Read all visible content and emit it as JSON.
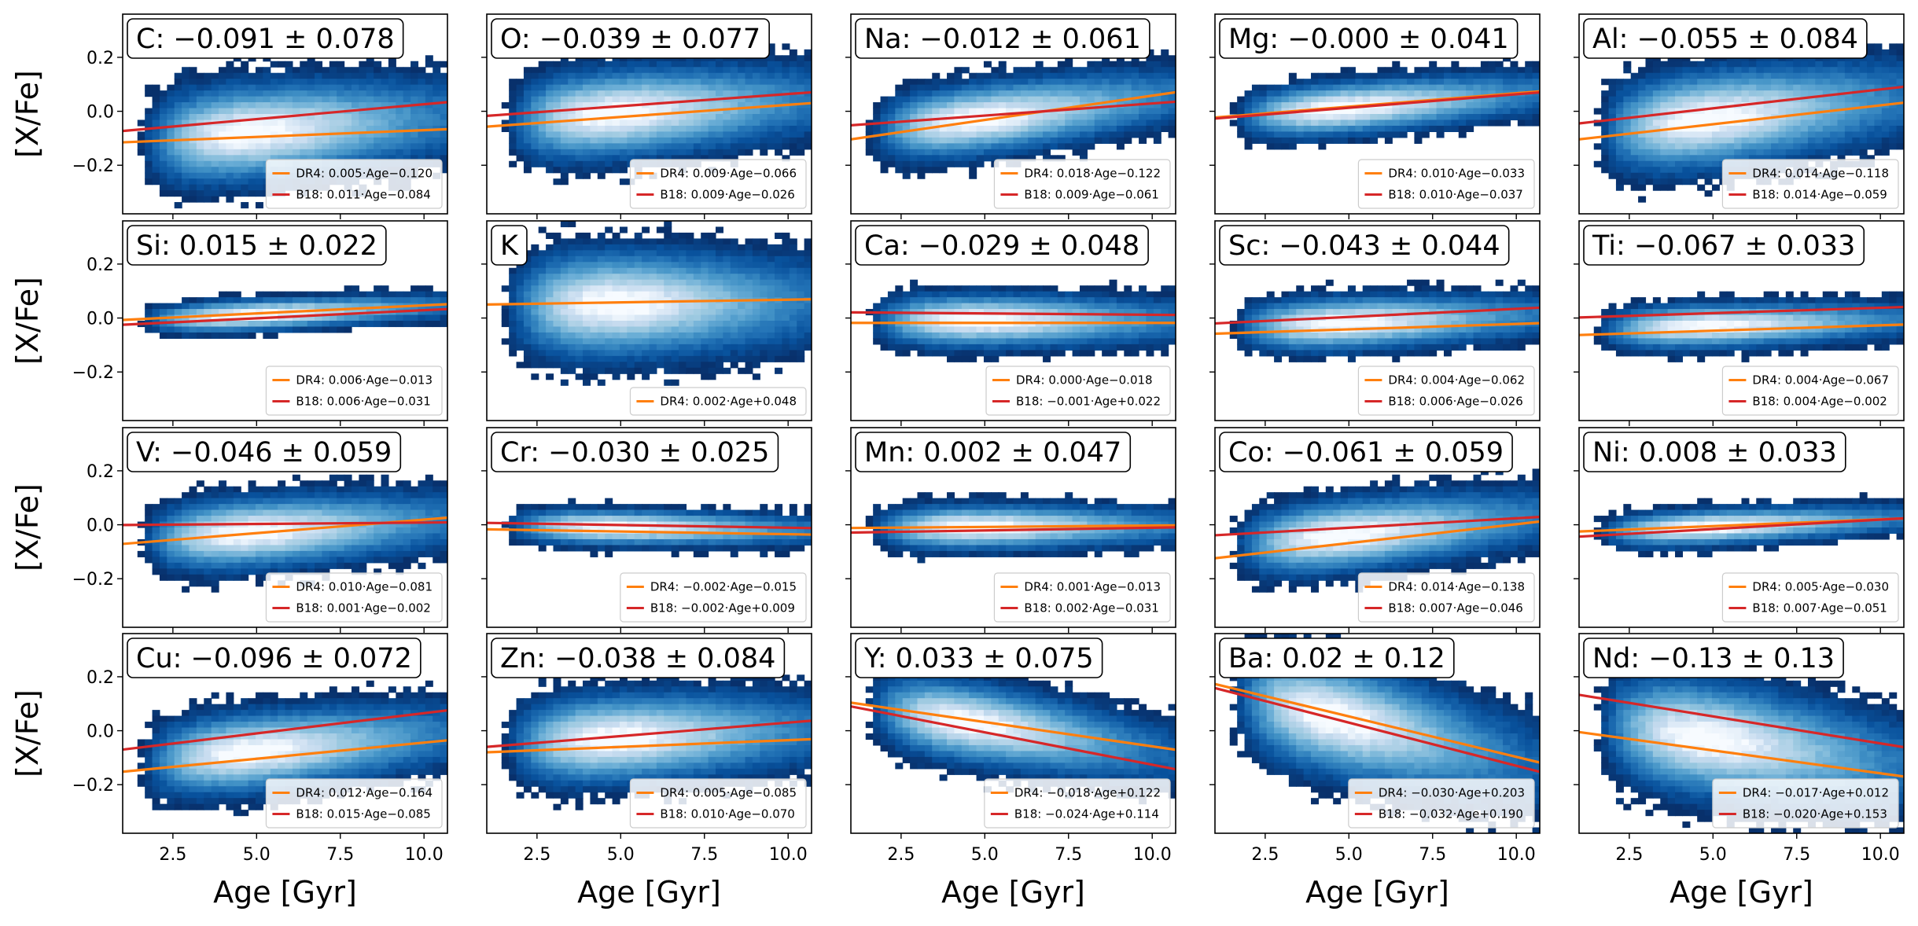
{
  "figure": {
    "xlabel": "Age [Gyr]",
    "ylabel": "[X/Fe]",
    "xlim": [
      1.0,
      10.7
    ],
    "ylim": [
      -0.38,
      0.36
    ],
    "xticks": [
      2.5,
      5.0,
      7.5,
      10.0
    ],
    "xticklabels": [
      "2.5",
      "5.0",
      "7.5",
      "10.0"
    ],
    "yticks": [
      -0.2,
      0.0,
      0.2
    ],
    "yticklabels": [
      "−0.2",
      "0.0",
      "0.2"
    ],
    "colors": {
      "dr4": "#ff7f0e",
      "b18": "#d62728",
      "density_low": "#08306b",
      "density_high": "#f7fbff"
    }
  },
  "chart_data": [
    {
      "type": "heatmap",
      "title": "C: −0.091 ± 0.078",
      "cy": -0.08,
      "sy": 0.11,
      "cx": 4.8,
      "slope": 0.01,
      "series": [
        {
          "name": "DR4: 0.005·Age−0.120",
          "slope": 0.005,
          "intercept": -0.12,
          "color": "#ff7f0e"
        },
        {
          "name": "B18: 0.011·Age−0.084",
          "slope": 0.011,
          "intercept": -0.084,
          "color": "#d62728"
        }
      ]
    },
    {
      "type": "heatmap",
      "title": "O: −0.039 ± 0.077",
      "cy": -0.01,
      "sy": 0.1,
      "cx": 4.8,
      "slope": 0.009,
      "series": [
        {
          "name": "DR4: 0.009·Age−0.066",
          "slope": 0.009,
          "intercept": -0.066,
          "color": "#ff7f0e"
        },
        {
          "name": "B18: 0.009·Age−0.026",
          "slope": 0.009,
          "intercept": -0.026,
          "color": "#d62728"
        }
      ]
    },
    {
      "type": "heatmap",
      "title": "Na: −0.012 ± 0.061",
      "cy": -0.03,
      "sy": 0.08,
      "cx": 4.8,
      "slope": 0.015,
      "series": [
        {
          "name": "DR4: 0.018·Age−0.122",
          "slope": 0.018,
          "intercept": -0.122,
          "color": "#ff7f0e"
        },
        {
          "name": "B18: 0.009·Age−0.061",
          "slope": 0.009,
          "intercept": -0.061,
          "color": "#d62728"
        }
      ]
    },
    {
      "type": "heatmap",
      "title": "Mg: −0.000 ± 0.041",
      "cy": 0.01,
      "sy": 0.06,
      "cx": 4.8,
      "slope": 0.01,
      "series": [
        {
          "name": "DR4: 0.010·Age−0.033",
          "slope": 0.01,
          "intercept": -0.033,
          "color": "#ff7f0e"
        },
        {
          "name": "B18: 0.010·Age−0.037",
          "slope": 0.01,
          "intercept": -0.037,
          "color": "#d62728"
        }
      ]
    },
    {
      "type": "heatmap",
      "title": "Al: −0.055 ± 0.084",
      "cy": -0.03,
      "sy": 0.11,
      "cx": 4.8,
      "slope": 0.014,
      "series": [
        {
          "name": "DR4: 0.014·Age−0.118",
          "slope": 0.014,
          "intercept": -0.118,
          "color": "#ff7f0e"
        },
        {
          "name": "B18: 0.014·Age−0.059",
          "slope": 0.014,
          "intercept": -0.059,
          "color": "#d62728"
        }
      ]
    },
    {
      "type": "heatmap",
      "title": "Si: 0.015 ± 0.022",
      "cy": 0.01,
      "sy": 0.035,
      "cx": 4.8,
      "slope": 0.006,
      "series": [
        {
          "name": "DR4: 0.006·Age−0.013",
          "slope": 0.006,
          "intercept": -0.013,
          "color": "#ff7f0e"
        },
        {
          "name": "B18: 0.006·Age−0.031",
          "slope": 0.006,
          "intercept": -0.031,
          "color": "#d62728"
        }
      ]
    },
    {
      "type": "heatmap",
      "title": "K",
      "cy": 0.05,
      "sy": 0.12,
      "cx": 4.8,
      "slope": 0.002,
      "series": [
        {
          "name": "DR4: 0.002·Age+0.048",
          "slope": 0.002,
          "intercept": 0.048,
          "color": "#ff7f0e"
        }
      ]
    },
    {
      "type": "heatmap",
      "title": "Ca: −0.029 ± 0.048",
      "cy": -0.01,
      "sy": 0.06,
      "cx": 4.8,
      "slope": 0.0,
      "series": [
        {
          "name": "DR4: 0.000·Age−0.018",
          "slope": 0.0,
          "intercept": -0.018,
          "color": "#ff7f0e"
        },
        {
          "name": "B18: −0.001·Age+0.022",
          "slope": -0.001,
          "intercept": 0.022,
          "color": "#d62728"
        }
      ]
    },
    {
      "type": "heatmap",
      "title": "Sc: −0.043 ± 0.044",
      "cy": -0.02,
      "sy": 0.06,
      "cx": 4.8,
      "slope": 0.005,
      "series": [
        {
          "name": "DR4: 0.004·Age−0.062",
          "slope": 0.004,
          "intercept": -0.062,
          "color": "#ff7f0e"
        },
        {
          "name": "B18: 0.006·Age−0.026",
          "slope": 0.006,
          "intercept": -0.026,
          "color": "#d62728"
        }
      ]
    },
    {
      "type": "heatmap",
      "title": "Ti: −0.067 ± 0.033",
      "cy": -0.03,
      "sy": 0.05,
      "cx": 4.8,
      "slope": 0.004,
      "series": [
        {
          "name": "DR4: 0.004·Age−0.067",
          "slope": 0.004,
          "intercept": -0.067,
          "color": "#ff7f0e"
        },
        {
          "name": "B18: 0.004·Age−0.002",
          "slope": 0.004,
          "intercept": -0.002,
          "color": "#d62728"
        }
      ]
    },
    {
      "type": "heatmap",
      "title": "V: −0.046 ± 0.059",
      "cy": -0.03,
      "sy": 0.08,
      "cx": 4.8,
      "slope": 0.008,
      "series": [
        {
          "name": "DR4: 0.010·Age−0.081",
          "slope": 0.01,
          "intercept": -0.081,
          "color": "#ff7f0e"
        },
        {
          "name": "B18: 0.001·Age−0.002",
          "slope": 0.001,
          "intercept": -0.002,
          "color": "#d62728"
        }
      ]
    },
    {
      "type": "heatmap",
      "title": "Cr: −0.030 ± 0.025",
      "cy": -0.01,
      "sy": 0.04,
      "cx": 4.8,
      "slope": -0.002,
      "series": [
        {
          "name": "DR4: −0.002·Age−0.015",
          "slope": -0.002,
          "intercept": -0.015,
          "color": "#ff7f0e"
        },
        {
          "name": "B18: −0.002·Age+0.009",
          "slope": -0.002,
          "intercept": 0.009,
          "color": "#d62728"
        }
      ]
    },
    {
      "type": "heatmap",
      "title": "Mn: 0.002 ± 0.047",
      "cy": -0.01,
      "sy": 0.05,
      "cx": 4.8,
      "slope": 0.001,
      "series": [
        {
          "name": "DR4: 0.001·Age−0.013",
          "slope": 0.001,
          "intercept": -0.013,
          "color": "#ff7f0e"
        },
        {
          "name": "B18: 0.002·Age−0.031",
          "slope": 0.002,
          "intercept": -0.031,
          "color": "#d62728"
        }
      ]
    },
    {
      "type": "heatmap",
      "title": "Co: −0.061 ± 0.059",
      "cy": -0.04,
      "sy": 0.08,
      "cx": 4.8,
      "slope": 0.012,
      "series": [
        {
          "name": "DR4: 0.014·Age−0.138",
          "slope": 0.014,
          "intercept": -0.138,
          "color": "#ff7f0e"
        },
        {
          "name": "B18: 0.007·Age−0.046",
          "slope": 0.007,
          "intercept": -0.046,
          "color": "#d62728"
        }
      ]
    },
    {
      "type": "heatmap",
      "title": "Ni: 0.008 ± 0.033",
      "cy": -0.01,
      "sy": 0.04,
      "cx": 4.8,
      "slope": 0.006,
      "series": [
        {
          "name": "DR4: 0.005·Age−0.030",
          "slope": 0.005,
          "intercept": -0.03,
          "color": "#ff7f0e"
        },
        {
          "name": "B18: 0.007·Age−0.051",
          "slope": 0.007,
          "intercept": -0.051,
          "color": "#d62728"
        }
      ]
    },
    {
      "type": "heatmap",
      "title": "Cu: −0.096 ± 0.072",
      "cy": -0.08,
      "sy": 0.09,
      "cx": 4.8,
      "slope": 0.012,
      "series": [
        {
          "name": "DR4: 0.012·Age−0.164",
          "slope": 0.012,
          "intercept": -0.164,
          "color": "#ff7f0e"
        },
        {
          "name": "B18: 0.015·Age−0.085",
          "slope": 0.015,
          "intercept": -0.085,
          "color": "#d62728"
        }
      ]
    },
    {
      "type": "heatmap",
      "title": "Zn: −0.038 ± 0.084",
      "cy": -0.03,
      "sy": 0.1,
      "cx": 4.8,
      "slope": 0.006,
      "series": [
        {
          "name": "DR4: 0.005·Age−0.085",
          "slope": 0.005,
          "intercept": -0.085,
          "color": "#ff7f0e"
        },
        {
          "name": "B18: 0.010·Age−0.070",
          "slope": 0.01,
          "intercept": -0.07,
          "color": "#d62728"
        }
      ]
    },
    {
      "type": "heatmap",
      "title": "Y: 0.033 ± 0.075",
      "cy": 0.03,
      "sy": 0.09,
      "cx": 4.5,
      "slope": -0.02,
      "series": [
        {
          "name": "DR4: −0.018·Age+0.122",
          "slope": -0.018,
          "intercept": 0.122,
          "color": "#ff7f0e"
        },
        {
          "name": "B18: −0.024·Age+0.114",
          "slope": -0.024,
          "intercept": 0.114,
          "color": "#d62728"
        }
      ]
    },
    {
      "type": "heatmap",
      "title": "Ba: 0.02 ± 0.12",
      "cy": 0.05,
      "sy": 0.13,
      "cx": 4.5,
      "slope": -0.03,
      "series": [
        {
          "name": "DR4: −0.030·Age+0.203",
          "slope": -0.03,
          "intercept": 0.203,
          "color": "#ff7f0e"
        },
        {
          "name": "B18: −0.032·Age+0.190",
          "slope": -0.032,
          "intercept": 0.19,
          "color": "#d62728"
        }
      ]
    },
    {
      "type": "heatmap",
      "title": "Nd: −0.13 ± 0.13",
      "cy": -0.03,
      "sy": 0.13,
      "cx": 4.8,
      "slope": -0.018,
      "series": [
        {
          "name": "DR4: −0.017·Age+0.012",
          "slope": -0.017,
          "intercept": 0.012,
          "color": "#ff7f0e"
        },
        {
          "name": "B18: −0.020·Age+0.153",
          "slope": -0.02,
          "intercept": 0.153,
          "color": "#d62728"
        }
      ]
    }
  ]
}
